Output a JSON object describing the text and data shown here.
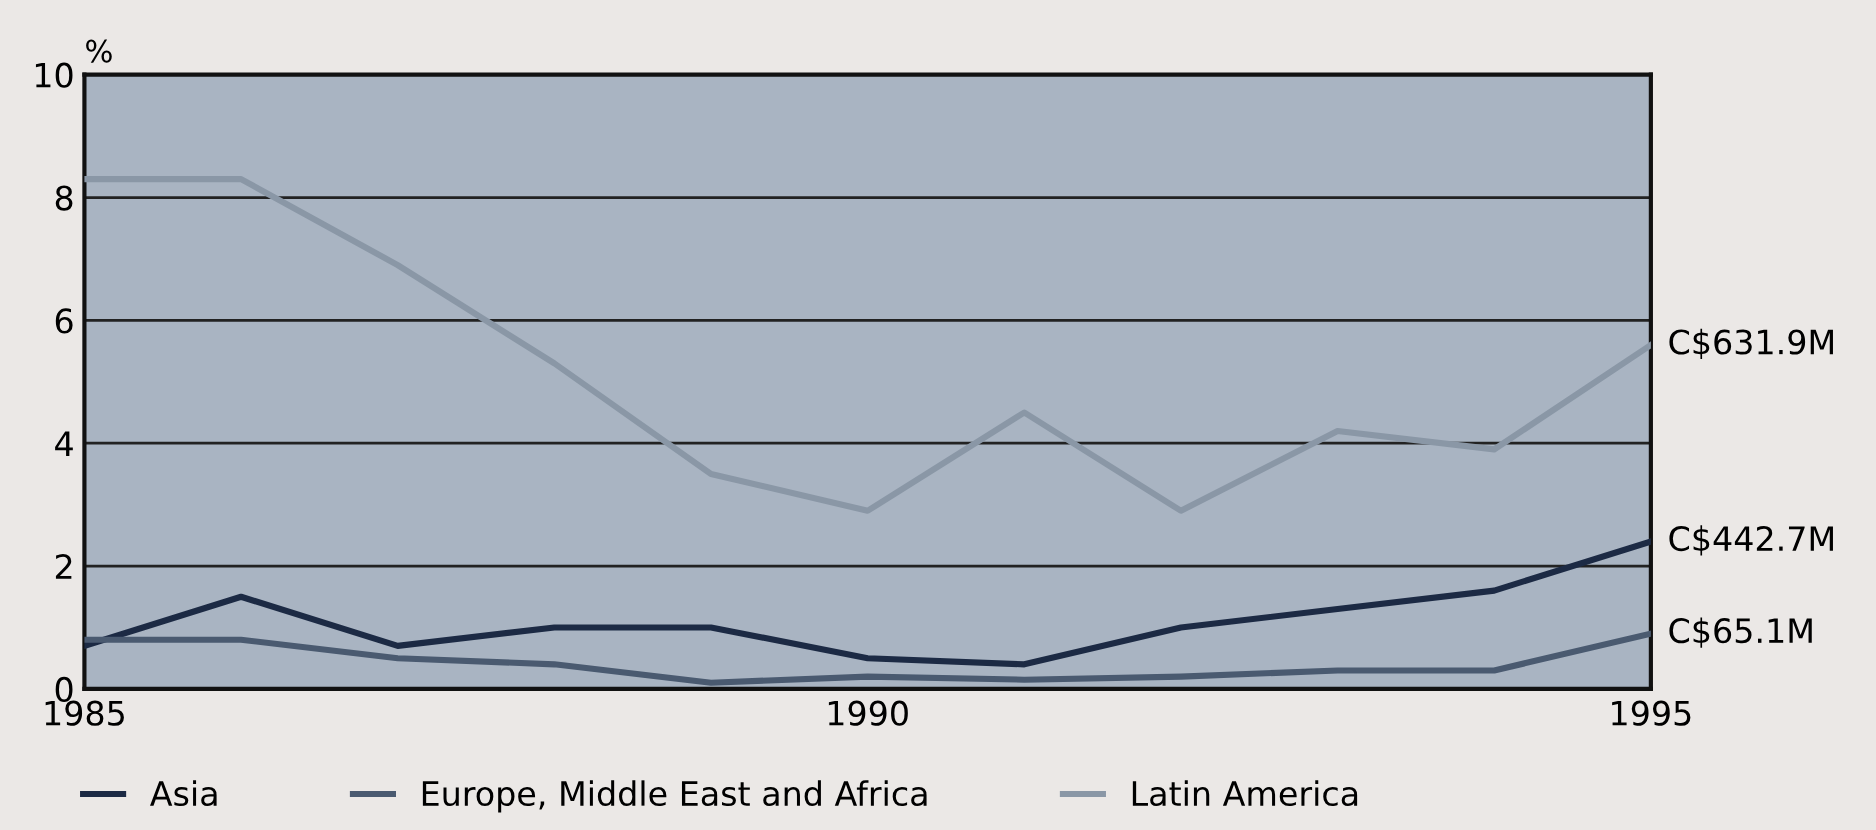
{
  "chart_data": {
    "type": "line",
    "ylabel": "%",
    "x": [
      1985,
      1986,
      1987,
      1988,
      1989,
      1990,
      1991,
      1992,
      1993,
      1994,
      1995
    ],
    "series": [
      {
        "name": "Asia",
        "color": "#1c2a44",
        "values": [
          0.7,
          1.5,
          0.7,
          1.0,
          1.0,
          0.5,
          0.4,
          1.0,
          1.3,
          1.6,
          2.4
        ]
      },
      {
        "name": "Europe, Middle East and Africa",
        "color": "#4a5a70",
        "values": [
          0.8,
          0.8,
          0.5,
          0.4,
          0.1,
          0.2,
          0.15,
          0.2,
          0.3,
          0.3,
          0.9
        ]
      },
      {
        "name": "Latin America",
        "color": "#8a97a6",
        "values": [
          8.3,
          8.3,
          6.9,
          5.3,
          3.5,
          2.9,
          4.5,
          2.9,
          4.2,
          3.9,
          5.6
        ]
      }
    ],
    "annotations": [
      "C$631.9M",
      "C$442.7M",
      "C$65.1M"
    ],
    "xlim": [
      1985,
      1995
    ],
    "xticks": [
      1985,
      1990,
      1995
    ],
    "ylim": [
      0,
      10
    ],
    "yticks": [
      0,
      2,
      4,
      6,
      8,
      10
    ],
    "grid": "y",
    "legend": "bottom",
    "marker": "none",
    "line_style": "solid"
  }
}
